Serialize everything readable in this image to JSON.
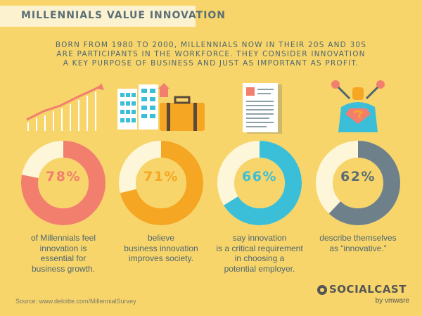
{
  "title": "MILLENNIALS VALUE INNOVATION",
  "subtitle": [
    "BORN FROM 1980 TO 2000, MILLENNIALS NOW IN THEIR 20S AND 30S",
    "ARE PARTICIPANTS IN THE WORKFORCE. THEY CONSIDER INNOVATION",
    "A KEY PURPOSE OF BUSINESS AND JUST AS IMPORTANT AS PROFIT."
  ],
  "stats": [
    {
      "percent_label": "78%",
      "value": 78,
      "color": "#f27e6e",
      "text_color": "#f27e6e",
      "icon": "growth-chart-icon",
      "lines": [
        "of Millennials feel",
        "innovation is",
        "essential for",
        "business growth."
      ]
    },
    {
      "percent_label": "71%",
      "value": 71,
      "color": "#f5a623",
      "text_color": "#f5a623",
      "icon": "buildings-briefcase-icon",
      "lines": [
        "believe",
        "business innovation",
        "improves society."
      ]
    },
    {
      "percent_label": "66%",
      "value": 66,
      "color": "#3bbfd8",
      "text_color": "#3bbfd8",
      "icon": "resume-icon",
      "lines": [
        "say innovation",
        "is a critical requirement",
        "in choosing a",
        "potential employer."
      ]
    },
    {
      "percent_label": "62%",
      "value": 62,
      "color": "#6e8089",
      "text_color": "#5b6d75",
      "icon": "superhero-icon",
      "lines": [
        "describe themselves",
        "as “innovative.”"
      ]
    }
  ],
  "source": "Source: www.deloitte.com/MillennialSurvey",
  "brand": {
    "name": "SOCIALCAST",
    "by": "by vmware"
  },
  "colors": {
    "background": "#f7d56a",
    "ring_track": "#fdf6d8",
    "text": "#4f6670"
  }
}
